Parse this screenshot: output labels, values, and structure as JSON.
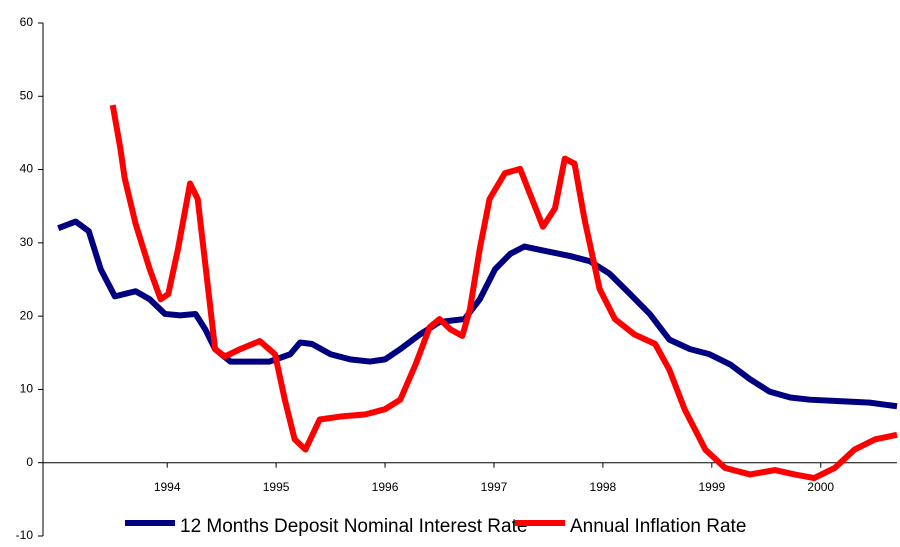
{
  "chart_data": {
    "type": "line",
    "xlim": [
      1992.86,
      2000.7
    ],
    "xticks": [
      1994,
      1995,
      1996,
      1997,
      1998,
      1999,
      2000
    ],
    "ylim": [
      -10,
      60
    ],
    "yticks": [
      -10,
      0,
      10,
      20,
      30,
      40,
      50,
      60
    ],
    "grid": false,
    "legend": "bottom",
    "series": [
      {
        "name": "12 Months Deposit Nominal Interest Rate",
        "color": "#000080",
        "x": [
          1993.0,
          1993.16,
          1993.28,
          1993.39,
          1993.52,
          1993.71,
          1993.84,
          1993.98,
          1994.12,
          1994.26,
          1994.35,
          1994.44,
          1994.58,
          1994.94,
          1995.13,
          1995.22,
          1995.33,
          1995.5,
          1995.68,
          1995.86,
          1996.0,
          1996.14,
          1996.32,
          1996.5,
          1996.73,
          1996.87,
          1997.01,
          1997.15,
          1997.28,
          1997.47,
          1997.7,
          1997.88,
          1998.06,
          1998.25,
          1998.43,
          1998.61,
          1998.8,
          1998.98,
          1999.17,
          1999.35,
          1999.53,
          1999.72,
          1999.9,
          2000.17,
          2000.45,
          2000.7
        ],
        "values": [
          32,
          32.9,
          31.6,
          26.4,
          22.7,
          23.4,
          22.3,
          20.3,
          20.1,
          20.3,
          18.2,
          15.5,
          13.8,
          13.8,
          14.8,
          16.4,
          16.2,
          14.8,
          14.1,
          13.8,
          14.1,
          15.5,
          17.5,
          19.2,
          19.6,
          22.3,
          26.4,
          28.5,
          29.5,
          28.9,
          28.2,
          27.5,
          25.8,
          23,
          20.3,
          16.8,
          15.5,
          14.8,
          13.4,
          11.4,
          9.7,
          8.9,
          8.6,
          8.4,
          8.2,
          7.7
        ]
      },
      {
        "name": "Annual Inflation Rate",
        "color": "#ff0000",
        "x": [
          1993.5,
          1993.57,
          1993.61,
          1993.71,
          1993.84,
          1993.94,
          1994.01,
          1994.1,
          1994.21,
          1994.28,
          1994.35,
          1994.44,
          1994.53,
          1994.67,
          1994.85,
          1994.99,
          1995.08,
          1995.17,
          1995.27,
          1995.4,
          1995.59,
          1995.82,
          1996.0,
          1996.14,
          1996.28,
          1996.41,
          1996.5,
          1996.6,
          1996.71,
          1996.78,
          1996.87,
          1996.96,
          1997.1,
          1997.24,
          1997.33,
          1997.45,
          1997.56,
          1997.65,
          1997.74,
          1997.83,
          1997.97,
          1998.11,
          1998.29,
          1998.48,
          1998.61,
          1998.75,
          1998.94,
          1999.12,
          1999.35,
          1999.58,
          1999.76,
          1999.94,
          2000.13,
          2000.31,
          2000.5,
          2000.7
        ],
        "values": [
          48.8,
          42.9,
          38.8,
          32.6,
          26.4,
          22.3,
          23,
          29.2,
          38.1,
          36,
          27.1,
          15.5,
          14.5,
          15.5,
          16.6,
          14.8,
          8.6,
          3.2,
          1.8,
          5.9,
          6.3,
          6.6,
          7.3,
          8.6,
          13.4,
          18.5,
          19.6,
          18.2,
          17.3,
          21,
          29.2,
          36,
          39.5,
          40.1,
          36.7,
          32.2,
          34.7,
          41.5,
          40.8,
          33.3,
          23.7,
          19.6,
          17.5,
          16.2,
          12.7,
          7.3,
          1.8,
          -0.7,
          -1.6,
          -1,
          -1.6,
          -2.1,
          -0.7,
          1.8,
          3.2,
          3.8
        ]
      }
    ]
  }
}
